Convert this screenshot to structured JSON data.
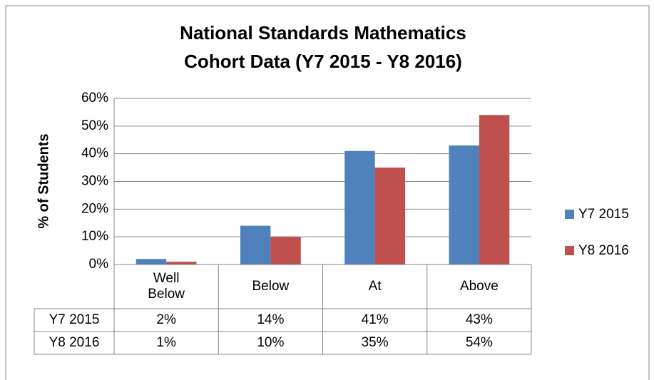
{
  "chart_data": {
    "type": "bar",
    "title": [
      "National Standards Mathematics",
      "Cohort Data (Y7 2015 - Y8 2016)"
    ],
    "y_label": "% of Students",
    "categories": [
      "Well Below",
      "Below",
      "At",
      "Above"
    ],
    "series": [
      {
        "name": "Y7 2015",
        "color": "#4f81bd",
        "values": [
          2,
          14,
          41,
          43
        ],
        "value_labels": [
          "2%",
          "14%",
          "41%",
          "43%"
        ]
      },
      {
        "name": "Y8 2016",
        "color": "#c0504d",
        "values": [
          1,
          10,
          35,
          54
        ],
        "value_labels": [
          "1%",
          "10%",
          "35%",
          "54%"
        ]
      }
    ],
    "ylim": [
      0,
      60
    ],
    "yticks": [
      {
        "value": 0,
        "label": "0%"
      },
      {
        "value": 10,
        "label": "10%"
      },
      {
        "value": 20,
        "label": "20%"
      },
      {
        "value": 30,
        "label": "30%"
      },
      {
        "value": 40,
        "label": "40%"
      },
      {
        "value": 50,
        "label": "50%"
      },
      {
        "value": 60,
        "label": "60%"
      }
    ],
    "grid": true,
    "legend": "right"
  }
}
